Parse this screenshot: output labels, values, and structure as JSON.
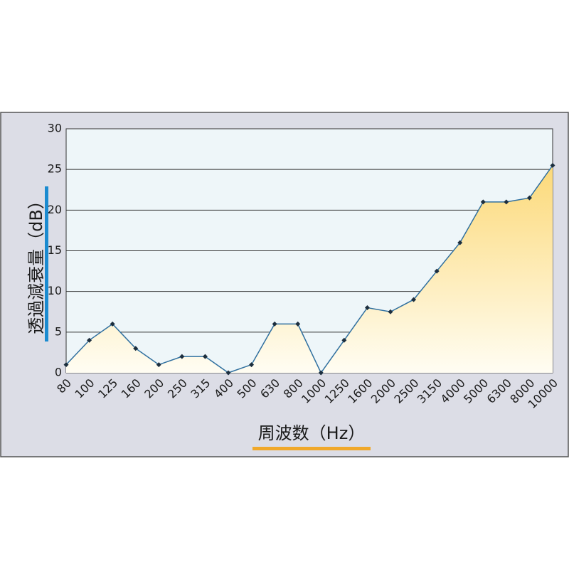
{
  "chart_data": {
    "type": "area",
    "x_label": "周波数（Hz）",
    "y_label": "透過減衰量（dB）",
    "categories": [
      "80",
      "100",
      "125",
      "160",
      "200",
      "250",
      "315",
      "400",
      "500",
      "630",
      "800",
      "1000",
      "1250",
      "1600",
      "2000",
      "2500",
      "3150",
      "4000",
      "5000",
      "6300",
      "8000",
      "10000"
    ],
    "series": [
      {
        "color": "#2f6f9f",
        "fill": "#fcd978",
        "marker_color": "#1c2e3e",
        "values": [
          1,
          4,
          6,
          3,
          1,
          2,
          2,
          0,
          1,
          6,
          6,
          0,
          4,
          8,
          7.5,
          9,
          12.5,
          16,
          21,
          21,
          21.5,
          25.5
        ]
      }
    ],
    "ylim": [
      0,
      30
    ],
    "yticks": [
      0,
      5,
      10,
      15,
      20,
      25,
      30
    ],
    "grid": true
  }
}
